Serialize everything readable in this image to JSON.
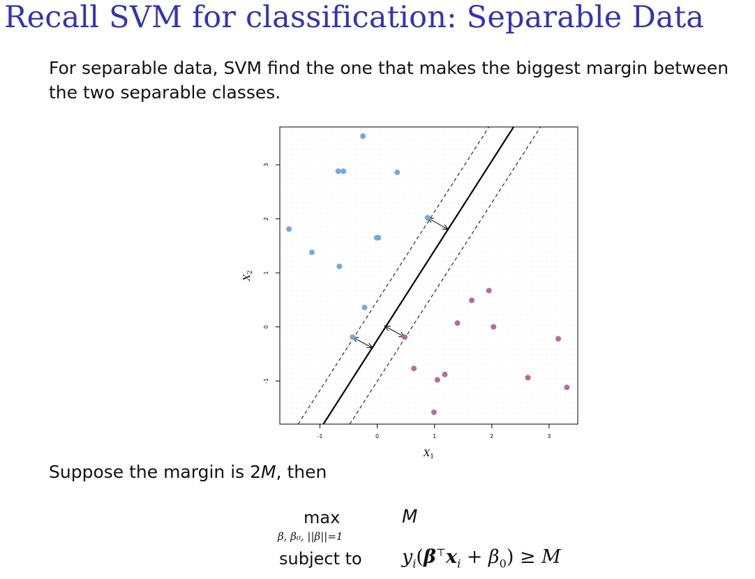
{
  "slide": {
    "title": "Recall SVM for classification: Separable Data",
    "intro_line1": "For separable data, SVM find the one that makes the biggest margin between",
    "intro_line2": "the two separable classes.",
    "margin_text_prefix": "Suppose the margin is 2",
    "margin_symbol": "M",
    "margin_text_suffix": ", then"
  },
  "optimization": {
    "max_label": "max",
    "max_subscript": "β, β₀, ||β||=1",
    "objective": "M",
    "subject_to_label": "subject to",
    "constraint": {
      "y": "y",
      "i": "i",
      "open": "(",
      "beta": "β",
      "transpose": "⊤",
      "x": "x",
      "plus": " + ",
      "beta0": "β",
      "zero": "0",
      "close": ") ≥ ",
      "M": "M"
    }
  },
  "chart_data": {
    "type": "scatter",
    "title": "",
    "xlabel": "X1",
    "ylabel": "X2",
    "xlim": [
      -1.7,
      3.5
    ],
    "ylim": [
      -1.8,
      3.7
    ],
    "xticks": [
      -1,
      0,
      1,
      2,
      3
    ],
    "yticks": [
      -1,
      0,
      1,
      2,
      3
    ],
    "grid": "dotted background lattice",
    "colors": {
      "blue": "#74a9dc",
      "purple": "#b86a9a",
      "axis": "#000000"
    },
    "series": [
      {
        "values": [
          [
            -0.25,
            3.53
          ],
          [
            -0.68,
            2.88
          ],
          [
            -0.59,
            2.88
          ],
          [
            0.35,
            2.86
          ],
          [
            -1.54,
            1.81
          ],
          [
            0.88,
            2.02
          ],
          [
            -0.01,
            1.65
          ],
          [
            0.02,
            1.65
          ],
          [
            -1.14,
            1.38
          ],
          [
            -0.66,
            1.12
          ],
          [
            -0.22,
            0.36
          ],
          [
            -0.43,
            -0.19
          ]
        ]
      },
      {
        "values": [
          [
            1.95,
            0.67
          ],
          [
            1.65,
            0.49
          ],
          [
            1.4,
            0.07
          ],
          [
            2.03,
            0.0
          ],
          [
            0.48,
            -0.19
          ],
          [
            3.16,
            -0.22
          ],
          [
            0.64,
            -0.77
          ],
          [
            1.18,
            -0.88
          ],
          [
            1.05,
            -0.98
          ],
          [
            2.63,
            -0.94
          ],
          [
            3.31,
            -1.12
          ],
          [
            0.99,
            -1.58
          ]
        ]
      }
    ],
    "hyperplane": {
      "points": [
        [
          -0.94,
          -1.8
        ],
        [
          2.38,
          3.7
        ]
      ],
      "margin_lines": [
        [
          [
            -1.38,
            -1.8
          ],
          [
            1.95,
            3.7
          ]
        ],
        [
          [
            -0.48,
            -1.8
          ],
          [
            2.85,
            3.7
          ]
        ]
      ]
    },
    "margin_arrows": [
      [
        [
          -0.43,
          -0.19
        ],
        [
          -0.08,
          -0.39
        ]
      ],
      [
        [
          0.88,
          2.02
        ],
        [
          1.24,
          1.8
        ]
      ],
      [
        [
          0.48,
          -0.19
        ],
        [
          0.13,
          0.02
        ]
      ]
    ]
  }
}
